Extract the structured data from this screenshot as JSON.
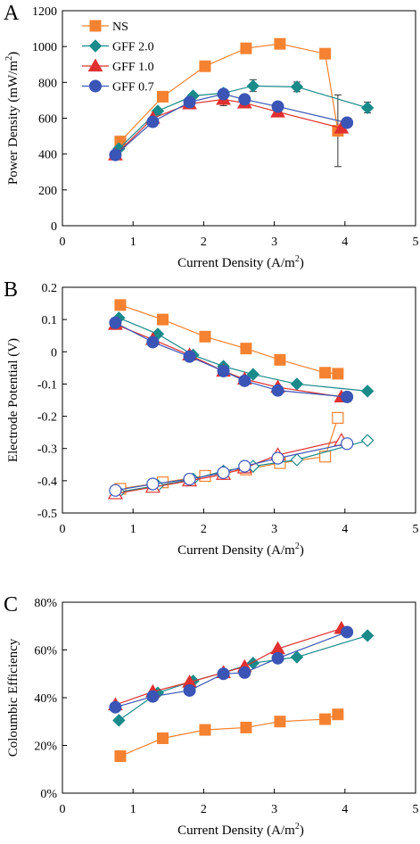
{
  "chart_data": [
    {
      "type": "scatter",
      "panel": "A",
      "xlabel": "Current Density (A/m",
      "xlabel_sup": "2",
      "xlabel_tail": ")",
      "ylabel": "Power Density (mW/m",
      "ylabel_sup": "2",
      "ylabel_tail": ")",
      "xlim": [
        0,
        5
      ],
      "ylim": [
        0,
        1200
      ],
      "xticks": [
        0,
        1,
        2,
        3,
        4,
        5
      ],
      "yticks": [
        0,
        200,
        400,
        600,
        800,
        1000,
        1200
      ],
      "ytick_labels": [
        "0",
        "200",
        "400",
        "600",
        "800",
        "1000",
        "1200"
      ],
      "grid": false,
      "legend": "top-left",
      "series": [
        {
          "name": "NS",
          "marker": "square",
          "color": "#F58231",
          "fill": true,
          "x": [
            0.82,
            1.42,
            2.02,
            2.6,
            3.08,
            3.72,
            3.9
          ],
          "y": [
            470,
            720,
            890,
            990,
            1015,
            960,
            530
          ]
        },
        {
          "name": "GFF 2.0",
          "marker": "diamond",
          "color": "#1A8A8A",
          "fill": true,
          "x": [
            0.8,
            1.35,
            1.85,
            2.28,
            2.7,
            3.32,
            4.32
          ],
          "y": [
            430,
            640,
            725,
            740,
            780,
            775,
            658
          ]
        },
        {
          "name": "GFF 1.0",
          "marker": "triangle",
          "color": "#E03030",
          "fill": true,
          "x": [
            0.75,
            1.28,
            1.8,
            2.28,
            2.58,
            3.05,
            3.95
          ],
          "y": [
            395,
            600,
            680,
            705,
            685,
            635,
            545
          ]
        },
        {
          "name": "GFF 0.7",
          "marker": "circle",
          "color": "#3A55B5",
          "fill": true,
          "x": [
            0.75,
            1.28,
            1.8,
            2.28,
            2.58,
            3.05,
            4.03
          ],
          "y": [
            395,
            580,
            690,
            735,
            705,
            665,
            575
          ]
        }
      ],
      "error_bars": [
        {
          "x": 2.28,
          "y": 705,
          "low": 670,
          "high": 740
        },
        {
          "x": 2.7,
          "y": 780,
          "low": 750,
          "high": 815
        },
        {
          "x": 3.32,
          "y": 775,
          "low": 748,
          "high": 802
        },
        {
          "x": 3.9,
          "y": 530,
          "low": 330,
          "high": 730
        },
        {
          "x": 4.32,
          "y": 658,
          "low": 630,
          "high": 690
        }
      ]
    },
    {
      "type": "scatter",
      "panel": "B",
      "xlabel": "Current Density (A/m",
      "xlabel_sup": "2",
      "xlabel_tail": ")",
      "ylabel": "Electrode Potential (V)",
      "xlim": [
        0,
        5
      ],
      "ylim": [
        -0.5,
        0.2
      ],
      "xticks": [
        0,
        1,
        2,
        3,
        4,
        5
      ],
      "yticks": [
        -0.5,
        -0.4,
        -0.3,
        -0.2,
        -0.1,
        0,
        0.1,
        0.2
      ],
      "ytick_labels": [
        "-0.5",
        "-0.4",
        "-0.3",
        "-0.2",
        "-0.1",
        "0",
        "0.1",
        "0.2"
      ],
      "grid": false,
      "series": [
        {
          "name": "NS",
          "marker": "square",
          "color": "#F58231",
          "fill": true,
          "x": [
            0.82,
            1.42,
            2.02,
            2.6,
            3.08,
            3.72,
            3.9
          ],
          "y": [
            0.145,
            0.1,
            0.047,
            0.01,
            -0.025,
            -0.065,
            -0.068
          ]
        },
        {
          "name": "GFF 2.0",
          "marker": "diamond",
          "color": "#1A8A8A",
          "fill": true,
          "x": [
            0.8,
            1.35,
            1.85,
            2.28,
            2.7,
            3.32,
            4.32
          ],
          "y": [
            0.105,
            0.055,
            -0.01,
            -0.045,
            -0.07,
            -0.1,
            -0.122
          ]
        },
        {
          "name": "GFF 1.0",
          "marker": "triangle",
          "color": "#E03030",
          "fill": true,
          "x": [
            0.75,
            1.28,
            1.8,
            2.28,
            2.58,
            3.05,
            3.95
          ],
          "y": [
            0.085,
            0.038,
            -0.01,
            -0.06,
            -0.085,
            -0.11,
            -0.14
          ]
        },
        {
          "name": "GFF 0.7",
          "marker": "circle",
          "color": "#3A55B5",
          "fill": true,
          "x": [
            0.75,
            1.28,
            1.8,
            2.28,
            2.58,
            3.05,
            4.03
          ],
          "y": [
            0.09,
            0.03,
            -0.015,
            -0.06,
            -0.09,
            -0.12,
            -0.14
          ]
        },
        {
          "name": "NS",
          "marker": "square",
          "color": "#F58231",
          "fill": false,
          "x": [
            0.82,
            1.42,
            2.02,
            2.6,
            3.08,
            3.72,
            3.9
          ],
          "y": [
            -0.425,
            -0.405,
            -0.385,
            -0.365,
            -0.345,
            -0.325,
            -0.205
          ]
        },
        {
          "name": "GFF 2.0",
          "marker": "diamond",
          "color": "#1A8A8A",
          "fill": false,
          "x": [
            0.8,
            1.35,
            1.85,
            2.28,
            2.7,
            3.32,
            4.32
          ],
          "y": [
            -0.435,
            -0.415,
            -0.395,
            -0.37,
            -0.355,
            -0.335,
            -0.275
          ]
        },
        {
          "name": "GFF 1.0",
          "marker": "triangle",
          "color": "#E03030",
          "fill": false,
          "x": [
            0.75,
            1.28,
            1.8,
            2.28,
            2.58,
            3.05,
            3.95
          ],
          "y": [
            -0.44,
            -0.42,
            -0.4,
            -0.38,
            -0.36,
            -0.32,
            -0.275
          ]
        },
        {
          "name": "GFF 0.7",
          "marker": "circle",
          "color": "#3A55B5",
          "fill": false,
          "x": [
            0.75,
            1.28,
            1.8,
            2.28,
            2.58,
            3.05,
            4.03
          ],
          "y": [
            -0.43,
            -0.41,
            -0.395,
            -0.375,
            -0.355,
            -0.33,
            -0.285
          ]
        }
      ]
    },
    {
      "type": "scatter",
      "panel": "C",
      "xlabel": "Current Density (A/m",
      "xlabel_sup": "2",
      "xlabel_tail": ")",
      "ylabel": "Coloumbic Efficiency",
      "xlim": [
        0,
        5
      ],
      "ylim": [
        0,
        0.8
      ],
      "xticks": [
        0,
        1,
        2,
        3,
        4,
        5
      ],
      "yticks": [
        0,
        0.2,
        0.4,
        0.6,
        0.8
      ],
      "ytick_labels": [
        "0%",
        "20%",
        "40%",
        "60%",
        "80%"
      ],
      "grid": false,
      "series": [
        {
          "name": "NS",
          "marker": "square",
          "color": "#F58231",
          "fill": true,
          "x": [
            0.82,
            1.42,
            2.02,
            2.6,
            3.08,
            3.72,
            3.9
          ],
          "y": [
            0.155,
            0.23,
            0.265,
            0.275,
            0.3,
            0.31,
            0.33
          ]
        },
        {
          "name": "GFF 2.0",
          "marker": "diamond",
          "color": "#1A8A8A",
          "fill": true,
          "x": [
            0.8,
            1.35,
            1.85,
            2.28,
            2.7,
            3.32,
            4.32
          ],
          "y": [
            0.305,
            0.42,
            0.47,
            0.505,
            0.545,
            0.57,
            0.66
          ]
        },
        {
          "name": "GFF 1.0",
          "marker": "triangle",
          "color": "#E03030",
          "fill": true,
          "x": [
            0.75,
            1.28,
            1.8,
            2.28,
            2.58,
            3.05,
            3.95
          ],
          "y": [
            0.37,
            0.425,
            0.465,
            0.505,
            0.53,
            0.605,
            0.69
          ]
        },
        {
          "name": "GFF 0.7",
          "marker": "circle",
          "color": "#3A55B5",
          "fill": true,
          "x": [
            0.75,
            1.28,
            1.8,
            2.28,
            2.58,
            3.05,
            4.03
          ],
          "y": [
            0.36,
            0.405,
            0.43,
            0.5,
            0.505,
            0.565,
            0.675
          ]
        }
      ]
    }
  ]
}
